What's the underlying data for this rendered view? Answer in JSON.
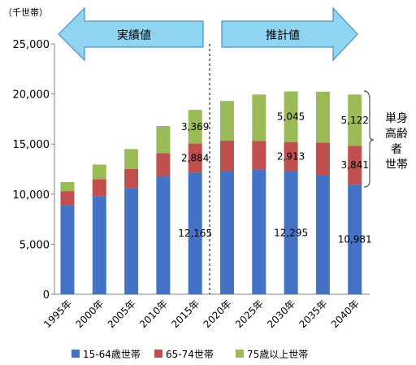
{
  "chart_data": {
    "type": "bar",
    "stacked": true,
    "unit": "（千世帯）",
    "categories": [
      "1995年",
      "2000年",
      "2005年",
      "2010年",
      "2015年",
      "2020年",
      "2025年",
      "2030年",
      "2035年",
      "2040年"
    ],
    "ylim": [
      0,
      25000
    ],
    "yticks": [
      "0",
      "5,000",
      "10,000",
      "15,000",
      "20,000",
      "25,000"
    ],
    "grid": false,
    "legend_position": "bottom",
    "series": [
      {
        "name": "15-64歳世帯",
        "color": "#4472C4",
        "values": [
          8900,
          9800,
          10600,
          11800,
          12165,
          12300,
          12450,
          12295,
          11850,
          10981
        ]
      },
      {
        "name": "65-74世帯",
        "color": "#C0504D",
        "values": [
          1400,
          1700,
          1900,
          2300,
          2884,
          3050,
          2850,
          2913,
          3300,
          3841
        ]
      },
      {
        "name": "75歳以上世帯",
        "color": "#9BBB59",
        "values": [
          900,
          1450,
          2000,
          2700,
          3369,
          3950,
          4650,
          5045,
          5080,
          5122
        ]
      }
    ],
    "data_labels": [
      {
        "category": 4,
        "series": 0,
        "text": "12,165"
      },
      {
        "category": 4,
        "series": 1,
        "text": "2,884"
      },
      {
        "category": 4,
        "series": 2,
        "text": "3,369"
      },
      {
        "category": 7,
        "series": 0,
        "text": "12,295"
      },
      {
        "category": 7,
        "series": 1,
        "text": "2,913"
      },
      {
        "category": 7,
        "series": 2,
        "text": "5,045"
      },
      {
        "category": 9,
        "series": 0,
        "text": "10,981"
      },
      {
        "category": 9,
        "series": 1,
        "text": "3,841"
      },
      {
        "category": 9,
        "series": 2,
        "text": "5,122"
      }
    ],
    "arrows": {
      "actual": "実績値",
      "projected": "推計値",
      "color": "#8FD4F0"
    },
    "bracket_label": [
      "単身",
      "高齢",
      "者",
      "世帯"
    ]
  }
}
